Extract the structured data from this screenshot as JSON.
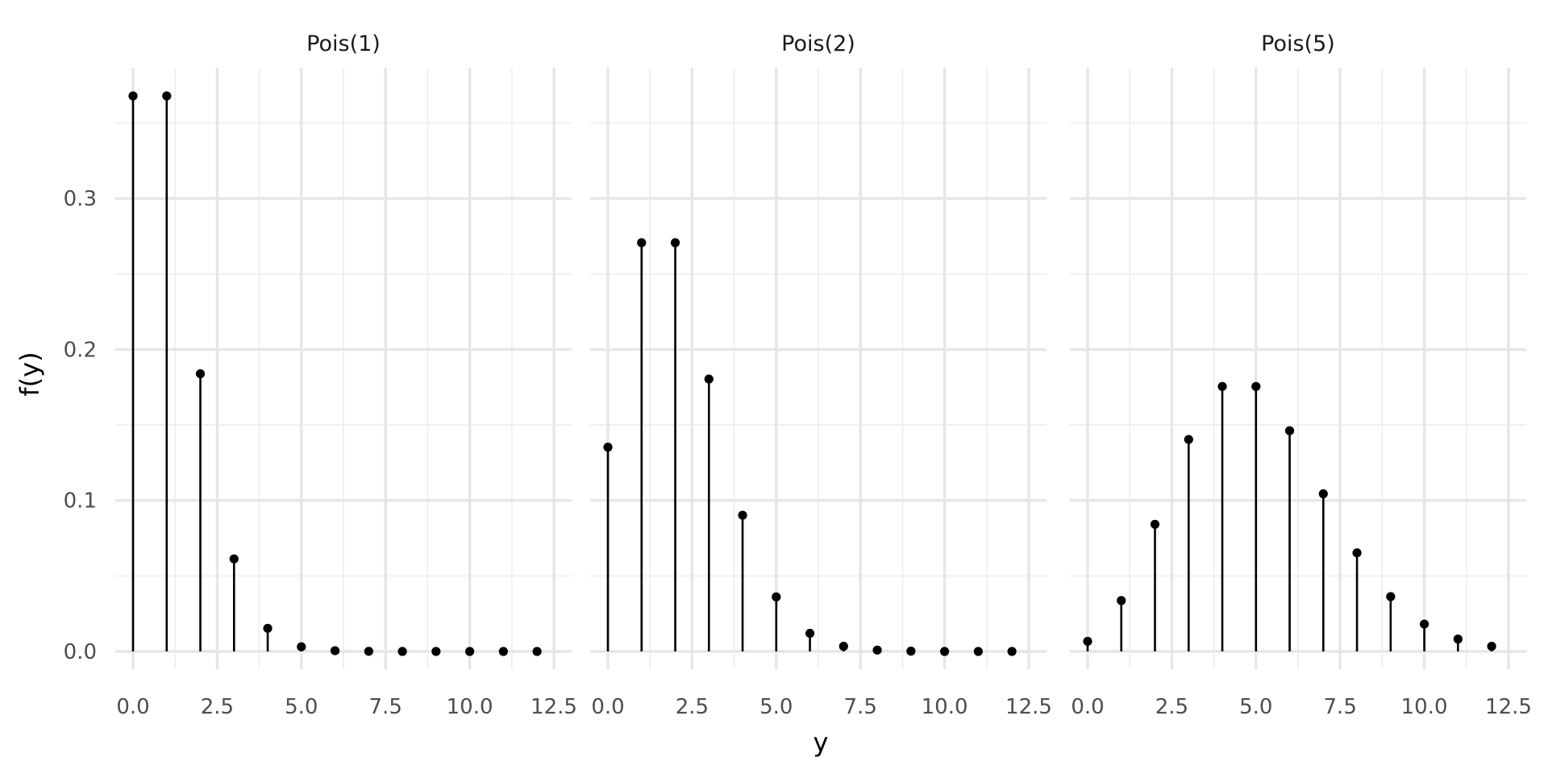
{
  "chart_data": {
    "type": "lollipop",
    "x_axis_title": "y",
    "y_axis_title": "f(y)",
    "x_ticks": [
      "0.0",
      "2.5",
      "5.0",
      "7.5",
      "10.0",
      "12.5"
    ],
    "y_ticks": [
      "0.0",
      "0.1",
      "0.2",
      "0.3"
    ],
    "xlim": [
      0,
      12.5
    ],
    "ylim": [
      0,
      0.3679
    ],
    "grid": true,
    "colors": {
      "marks": "#000000",
      "grid": "#e6e6e6"
    },
    "x": [
      0,
      1,
      2,
      3,
      4,
      5,
      6,
      7,
      8,
      9,
      10,
      11,
      12
    ],
    "panels": [
      {
        "title": "Pois(1)",
        "values": [
          0.3679,
          0.3679,
          0.1839,
          0.0613,
          0.0153,
          0.0031,
          0.0005,
          0.0001,
          0.0,
          0.0,
          0.0,
          0.0,
          0.0
        ]
      },
      {
        "title": "Pois(2)",
        "values": [
          0.1353,
          0.2707,
          0.2707,
          0.1804,
          0.0902,
          0.0361,
          0.012,
          0.0034,
          0.0009,
          0.0002,
          0.0,
          0.0,
          0.0
        ]
      },
      {
        "title": "Pois(5)",
        "values": [
          0.0067,
          0.0337,
          0.0842,
          0.1404,
          0.1755,
          0.1755,
          0.1462,
          0.1044,
          0.0653,
          0.0363,
          0.0181,
          0.0082,
          0.0034
        ]
      }
    ]
  }
}
